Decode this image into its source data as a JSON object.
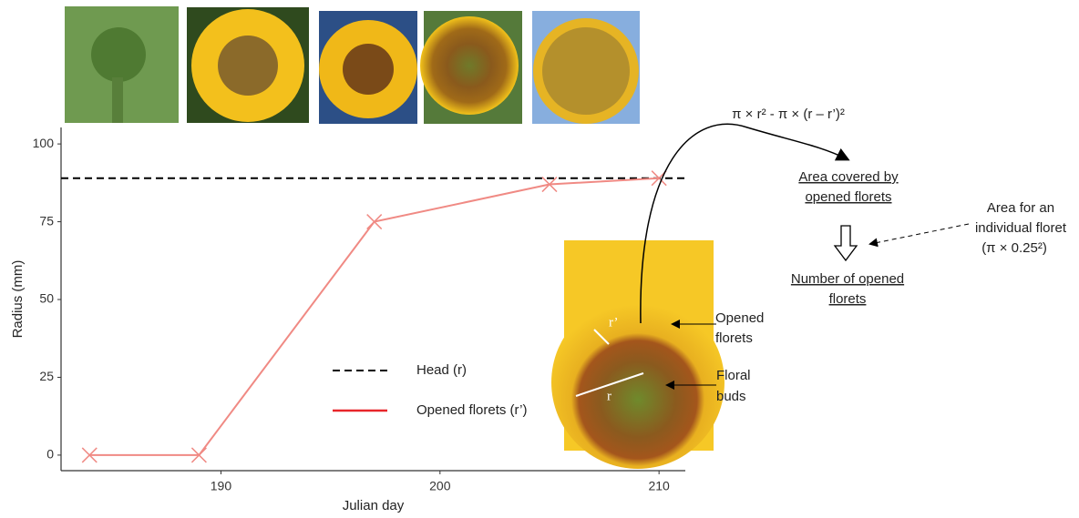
{
  "chart_data": {
    "type": "line",
    "x_label": "Julian day",
    "y_label": "Radius (mm)",
    "x": [
      184,
      189,
      197,
      205,
      210
    ],
    "series": [
      {
        "name": "Opened florets (r’)",
        "color": "#f08a84",
        "legend_color": "#e8262b",
        "marker": "x",
        "values": [
          0,
          0,
          75,
          87,
          89
        ]
      }
    ],
    "reference_lines": [
      {
        "name": "Head (r)",
        "value": 89,
        "color": "#000000",
        "dash": true
      }
    ],
    "xlim": [
      182.7,
      211.2
    ],
    "ylim": [
      -5,
      105.3
    ],
    "xticks": [
      190,
      200,
      210
    ],
    "yticks": [
      0,
      25,
      50,
      75,
      100
    ],
    "grid": false
  },
  "annotations": {
    "formula": "π × r² - π × (r – r’)²",
    "area_covered": [
      "Area covered by",
      "opened florets"
    ],
    "individual_floret": [
      "Area for an",
      "individual  floret",
      "(π × 0.25²)"
    ],
    "number_opened": [
      "Number of opened",
      "florets"
    ],
    "photo_opened": [
      "Opened",
      "florets"
    ],
    "photo_buds": [
      "Floral",
      "buds"
    ],
    "r_prime": "r’",
    "r": "r"
  }
}
